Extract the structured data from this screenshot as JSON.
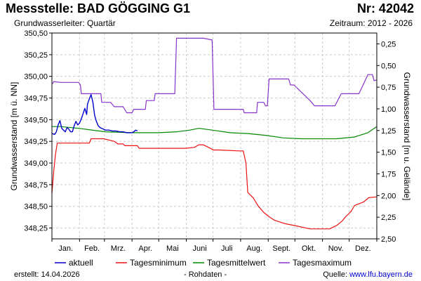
{
  "header": {
    "title": "Messstelle: BAD GÖGGING G1",
    "number": "Nr: 42042",
    "aquifer": "Grundwasserleiter: Quartär",
    "period": "Zeitraum: 2012 - 2026"
  },
  "footer": {
    "created": "erstellt:  14.04.2026",
    "raw": "- Rohdaten -",
    "source_label": "Quelle: ",
    "source_url": "www.lfu.bayern.de"
  },
  "colors": {
    "aktuell": "#0000cc",
    "min": "#ee1111",
    "mean": "#008800",
    "max": "#8833cc",
    "grid": "#cccccc",
    "frame": "#000000"
  },
  "chart_data": {
    "type": "line",
    "ylabel_left": "Grundwasserstand [m ü. NN]",
    "ylabel_right": "Grundwasserstand [m u. Gelände]",
    "ylim": [
      348.125,
      350.5
    ],
    "yticks_left": [
      "348,25",
      "348,50",
      "348,75",
      "349,00",
      "349,25",
      "349,50",
      "349,75",
      "350,00",
      "350,25",
      "350,50"
    ],
    "yticks_left_values": [
      348.25,
      348.5,
      348.75,
      349.0,
      349.25,
      349.5,
      349.75,
      350.0,
      350.25,
      350.5
    ],
    "yticks_right": [
      "0,25",
      "0,50",
      "0,75",
      "1,00",
      "1,25",
      "1,50",
      "1,75",
      "2,00",
      "2,25",
      "2,50"
    ],
    "yticks_right_values": [
      0.25,
      0.5,
      0.75,
      1.0,
      1.25,
      1.5,
      1.75,
      2.0,
      2.25,
      2.5
    ],
    "right_axis_offset": 350.625,
    "xlim": [
      0,
      365
    ],
    "month_starts": [
      0,
      31,
      59,
      90,
      120,
      151,
      181,
      212,
      243,
      273,
      304,
      334,
      365
    ],
    "xticks": [
      "Jan.",
      "Feb.",
      "Mrz.",
      "Apr.",
      "Mai",
      "Juni",
      "Juli",
      "Aug.",
      "Sept.",
      "Okt.",
      "Nov.",
      "Dez."
    ],
    "series": [
      {
        "name": "aktuell",
        "key": "aktuell",
        "x": [
          0,
          3,
          5,
          7,
          9,
          11,
          13,
          15,
          17,
          19,
          21,
          23,
          25,
          27,
          29,
          31,
          33,
          35,
          37,
          39,
          40,
          42,
          44,
          46,
          48,
          50,
          52,
          54,
          56,
          58,
          60,
          64,
          68,
          72,
          76,
          80,
          84,
          88,
          90,
          92,
          94,
          96
        ],
        "y": [
          349.34,
          349.33,
          349.36,
          349.44,
          349.49,
          349.4,
          349.38,
          349.36,
          349.41,
          349.39,
          349.36,
          349.36,
          349.43,
          349.48,
          349.44,
          349.46,
          349.51,
          349.57,
          349.63,
          349.56,
          349.68,
          349.74,
          349.79,
          349.7,
          349.55,
          349.48,
          349.43,
          349.41,
          349.4,
          349.39,
          349.38,
          349.38,
          349.37,
          349.37,
          349.36,
          349.36,
          349.35,
          349.35,
          349.35,
          349.36,
          349.38,
          349.37
        ]
      },
      {
        "name": "Tagesminimum",
        "key": "min",
        "x": [
          0,
          2,
          4,
          6,
          8,
          14,
          28,
          42,
          44,
          56,
          58,
          70,
          74,
          80,
          82,
          96,
          98,
          140,
          150,
          160,
          165,
          170,
          180,
          181,
          188,
          210,
          215,
          218,
          220,
          226,
          232,
          238,
          244,
          250,
          256,
          262,
          272,
          290,
          298,
          304,
          312,
          316,
          320,
          326,
          330,
          336,
          340,
          350,
          356,
          365
        ],
        "y": [
          348.65,
          348.9,
          349.1,
          349.23,
          349.23,
          349.23,
          349.23,
          349.23,
          349.28,
          349.28,
          349.28,
          349.25,
          349.22,
          349.22,
          349.2,
          349.2,
          349.17,
          349.17,
          349.17,
          349.18,
          349.21,
          349.21,
          349.16,
          349.15,
          349.15,
          349.14,
          349.14,
          349.0,
          348.66,
          348.6,
          348.5,
          348.43,
          348.38,
          348.34,
          348.32,
          348.3,
          348.28,
          348.24,
          348.24,
          348.24,
          348.24,
          348.26,
          348.28,
          348.33,
          348.38,
          348.44,
          348.51,
          348.55,
          348.6,
          348.61
        ]
      },
      {
        "name": "Tagesmittelwert",
        "key": "mean",
        "x": [
          0,
          10,
          30,
          60,
          90,
          120,
          140,
          155,
          165,
          180,
          200,
          220,
          240,
          260,
          280,
          300,
          320,
          340,
          355,
          365
        ],
        "y": [
          349.42,
          349.42,
          349.4,
          349.36,
          349.35,
          349.35,
          349.36,
          349.38,
          349.4,
          349.38,
          349.35,
          349.34,
          349.32,
          349.29,
          349.28,
          349.28,
          349.28,
          349.3,
          349.35,
          349.42
        ],
        "scale_note": ""
      },
      {
        "name": "Tagesmaximum",
        "key": "max",
        "x": [
          0,
          1,
          2,
          10,
          30,
          32,
          33,
          40,
          55,
          56,
          66,
          70,
          80,
          84,
          90,
          92,
          105,
          106,
          115,
          116,
          118,
          120,
          138,
          140,
          150,
          151,
          160,
          162,
          170,
          180,
          182,
          200,
          215,
          216,
          230,
          231,
          238,
          240,
          242,
          244,
          250,
          260,
          266,
          268,
          272,
          290,
          295,
          300,
          302,
          310,
          318,
          325,
          327,
          330,
          335,
          345,
          355,
          360,
          362,
          365
        ],
        "y": [
          349.92,
          349.92,
          349.94,
          349.93,
          349.93,
          349.9,
          349.8,
          349.8,
          349.8,
          349.7,
          349.7,
          349.65,
          349.65,
          349.58,
          349.58,
          349.62,
          349.62,
          349.72,
          349.72,
          349.8,
          349.8,
          349.8,
          349.8,
          350.44,
          350.44,
          350.44,
          350.44,
          350.44,
          350.44,
          350.42,
          349.62,
          349.62,
          349.62,
          349.58,
          349.58,
          349.7,
          349.7,
          349.66,
          349.66,
          349.97,
          349.97,
          349.97,
          349.97,
          349.9,
          349.9,
          349.72,
          349.66,
          349.66,
          349.66,
          349.66,
          349.66,
          349.8,
          349.8,
          349.8,
          349.8,
          349.8,
          350.02,
          350.02,
          349.95,
          349.96
        ]
      }
    ],
    "legend": {
      "position": "bottom",
      "entries": [
        "aktuell",
        "Tagesminimum",
        "Tagesmittelwert",
        "Tagesmaximum"
      ]
    },
    "grid": true
  }
}
